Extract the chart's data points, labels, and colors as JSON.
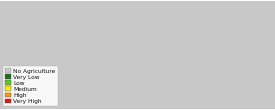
{
  "figsize": [
    2.75,
    1.1
  ],
  "dpi": 100,
  "background_color": "#ffffff",
  "legend_items": [
    {
      "label": "No Agriculture",
      "color": "#c8c8c8",
      "edgecolor": "#888888"
    },
    {
      "label": "Very Low",
      "color": "#1a6e1a",
      "edgecolor": "#555555"
    },
    {
      "label": "Low",
      "color": "#55cc22",
      "edgecolor": "#555555"
    },
    {
      "label": "Medium",
      "color": "#ffee00",
      "edgecolor": "#555555"
    },
    {
      "label": "High",
      "color": "#ff9900",
      "edgecolor": "#555555"
    },
    {
      "label": "Very High",
      "color": "#ee1111",
      "edgecolor": "#555555"
    }
  ],
  "legend_fontsize": 4.2,
  "map_colors": {
    "no_ag": "#c8c8c8",
    "very_low": "#1a6e1a",
    "low": "#55cc22",
    "medium": "#ffee00",
    "high": "#ff9900",
    "very_high": "#ee1111",
    "ocean": "#ffffff",
    "border": "#888888"
  },
  "extent": [
    -180,
    180,
    -58,
    83
  ]
}
